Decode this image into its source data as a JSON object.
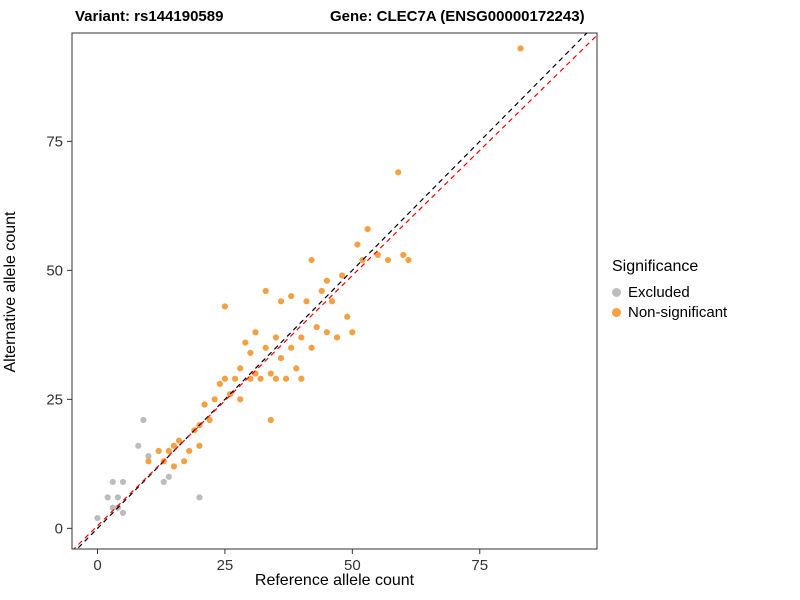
{
  "titles": {
    "variant": "Variant: rs144190589",
    "gene": "Gene: CLEC7A (ENSG00000172243)"
  },
  "axes": {
    "x_label": "Reference allele count",
    "y_label": "Alternative allele count"
  },
  "legend": {
    "title": "Significance",
    "items": [
      {
        "label": "Excluded",
        "color": "#bcbcbc"
      },
      {
        "label": "Non-significant",
        "color": "#f5a143"
      }
    ]
  },
  "chart_data": {
    "type": "scatter",
    "title": "Variant: rs144190589 / Gene: CLEC7A (ENSG00000172243)",
    "xlabel": "Reference allele count",
    "ylabel": "Alternative allele count",
    "xlim": [
      -5,
      98
    ],
    "ylim": [
      -4,
      96
    ],
    "xticks": [
      0,
      25,
      50,
      75
    ],
    "yticks": [
      0,
      25,
      50,
      75
    ],
    "grid": false,
    "legend_position": "right",
    "series": [
      {
        "name": "Excluded",
        "color": "#bcbcbc",
        "points": [
          [
            0,
            2
          ],
          [
            2,
            6
          ],
          [
            3,
            4
          ],
          [
            3,
            9
          ],
          [
            4,
            4
          ],
          [
            4,
            6
          ],
          [
            5,
            3
          ],
          [
            5,
            9
          ],
          [
            8,
            16
          ],
          [
            9,
            21
          ],
          [
            10,
            14
          ],
          [
            13,
            9
          ],
          [
            14,
            10
          ],
          [
            20,
            6
          ]
        ]
      },
      {
        "name": "Non-significant",
        "color": "#f5a143",
        "points": [
          [
            10,
            13
          ],
          [
            12,
            15
          ],
          [
            13,
            13
          ],
          [
            14,
            15
          ],
          [
            15,
            12
          ],
          [
            15,
            16
          ],
          [
            16,
            17
          ],
          [
            17,
            13
          ],
          [
            18,
            15
          ],
          [
            19,
            19
          ],
          [
            20,
            16
          ],
          [
            20,
            20
          ],
          [
            21,
            24
          ],
          [
            22,
            21
          ],
          [
            23,
            25
          ],
          [
            24,
            28
          ],
          [
            25,
            29
          ],
          [
            25,
            43
          ],
          [
            26,
            26
          ],
          [
            27,
            29
          ],
          [
            28,
            25
          ],
          [
            28,
            31
          ],
          [
            29,
            36
          ],
          [
            30,
            29
          ],
          [
            30,
            34
          ],
          [
            31,
            30
          ],
          [
            31,
            38
          ],
          [
            32,
            29
          ],
          [
            33,
            35
          ],
          [
            33,
            46
          ],
          [
            34,
            21
          ],
          [
            34,
            30
          ],
          [
            35,
            29
          ],
          [
            35,
            37
          ],
          [
            36,
            33
          ],
          [
            36,
            44
          ],
          [
            37,
            29
          ],
          [
            38,
            35
          ],
          [
            38,
            45
          ],
          [
            39,
            31
          ],
          [
            40,
            29
          ],
          [
            40,
            37
          ],
          [
            41,
            44
          ],
          [
            42,
            35
          ],
          [
            42,
            52
          ],
          [
            43,
            39
          ],
          [
            44,
            46
          ],
          [
            45,
            38
          ],
          [
            45,
            48
          ],
          [
            46,
            44
          ],
          [
            47,
            37
          ],
          [
            48,
            49
          ],
          [
            49,
            41
          ],
          [
            50,
            38
          ],
          [
            51,
            55
          ],
          [
            52,
            52
          ],
          [
            53,
            58
          ],
          [
            55,
            53
          ],
          [
            57,
            52
          ],
          [
            59,
            69
          ],
          [
            60,
            53
          ],
          [
            61,
            52
          ],
          [
            83,
            93
          ]
        ]
      }
    ],
    "lines": [
      {
        "name": "identity-line",
        "slope": 1,
        "intercept": 0,
        "color": "#000000",
        "style": "dashed"
      },
      {
        "name": "fit-line",
        "slope": 0.97,
        "intercept": 0.5,
        "color": "#ff0000",
        "style": "dashed"
      }
    ]
  }
}
